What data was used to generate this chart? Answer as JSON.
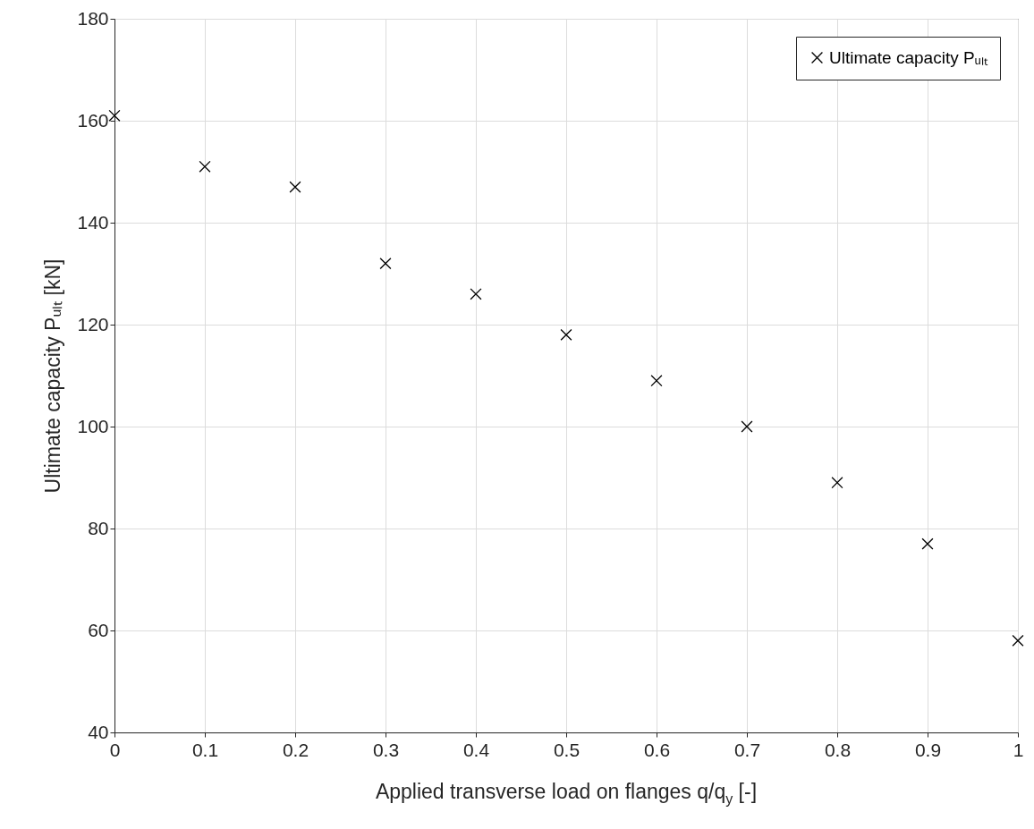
{
  "chart_data": {
    "type": "scatter",
    "xlabel": "Applied transverse load on flanges q/q$_{y}$ [-]",
    "ylabel": "Ultimate capacity Pᵤₗₜ [kN]",
    "x": [
      0,
      0.1,
      0.2,
      0.3,
      0.4,
      0.5,
      0.6,
      0.7,
      0.8,
      0.9,
      1
    ],
    "series": [
      {
        "name": "Ultimate capacity Pᵤₗₜ",
        "color": "#000000",
        "values": [
          161,
          151,
          147,
          132,
          126,
          118,
          109,
          100,
          89,
          77,
          58
        ]
      }
    ],
    "xlim": [
      0,
      1
    ],
    "xticks": [
      0,
      0.1,
      0.2,
      0.3,
      0.4,
      0.5,
      0.6,
      0.7,
      0.8,
      0.9,
      1
    ],
    "ylim": [
      40,
      180
    ],
    "yticks": [
      40,
      60,
      80,
      100,
      120,
      140,
      160,
      180
    ],
    "grid": true,
    "legend": "top right",
    "marker": "cross"
  }
}
